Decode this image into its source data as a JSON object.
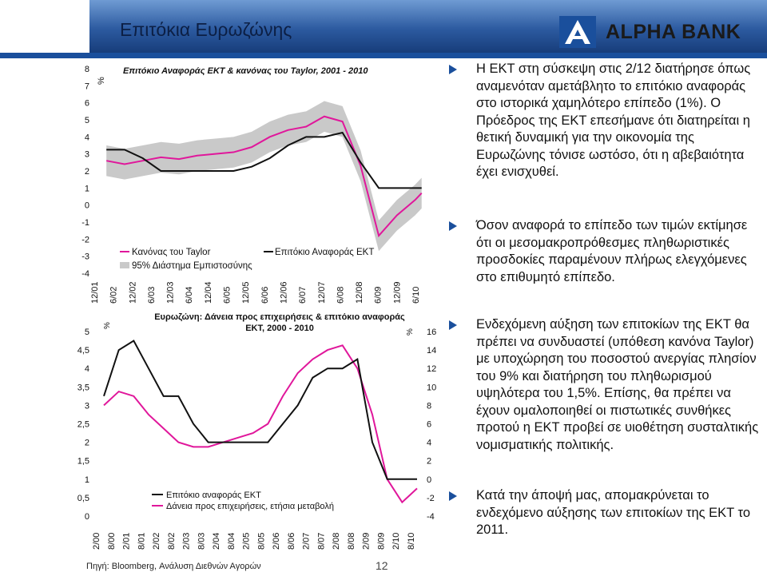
{
  "header": {
    "title": "Επιτόκια Ευρωζώνης",
    "logo_text": "ALPHA BANK"
  },
  "colors": {
    "accent": "#1a4f9c",
    "series_black": "#111111",
    "series_pink": "#e0179b",
    "band_gray": "#c9c9c9"
  },
  "charts": [
    {
      "title": "Επιτόκιο Αναφοράς ΕΚΤ & κανόνας του Taylor, 2001 - 2010",
      "unit_label": "%",
      "legend": [
        "Κανόνας του Taylor",
        "95% Διάστημα Εμπιστοσύνης",
        "Επιτόκιο Αναφοράς ΕΚΤ"
      ]
    },
    {
      "title_line1": "Ευρωζώνη: Δάνεια προς επιχειρήσεις & επιτόκιο αναφοράς",
      "title_line2": "ΕΚΤ, 2000 - 2010",
      "unit_left": "%",
      "unit_right": "%",
      "legend": [
        "Επιτόκιο αναφοράς ΕΚΤ",
        "Δάνεια προς επιχειρήσεις, ετήσια μεταβολή"
      ]
    }
  ],
  "chart_data": [
    {
      "type": "line",
      "title": "Επιτόκιο Αναφοράς ΕΚΤ & κανόνας του Taylor, 2001 - 2010",
      "xlabel": "",
      "ylabel": "%",
      "ylim": [
        -4,
        8
      ],
      "yticks": [
        8,
        7,
        6,
        5,
        4,
        3,
        2,
        1,
        0,
        -1,
        -2,
        -3,
        -4
      ],
      "xtick_labels": [
        "12/01",
        "6/02",
        "12/02",
        "6/03",
        "12/03",
        "6/04",
        "12/04",
        "6/05",
        "12/05",
        "6/06",
        "12/06",
        "6/07",
        "12/07",
        "6/08",
        "12/08",
        "6/09",
        "12/09",
        "6/10"
      ],
      "x": [
        2001.92,
        2002.42,
        2002.92,
        2003.42,
        2003.92,
        2004.42,
        2004.92,
        2005.42,
        2005.92,
        2006.42,
        2006.92,
        2007.42,
        2007.92,
        2008.42,
        2008.92,
        2009.42,
        2009.92,
        2010.42,
        2010.6
      ],
      "series": [
        {
          "name": "Επιτόκιο Αναφοράς ΕΚΤ",
          "values": [
            3.25,
            3.25,
            2.75,
            2.0,
            2.0,
            2.0,
            2.0,
            2.0,
            2.25,
            2.75,
            3.5,
            4.0,
            4.0,
            4.25,
            2.5,
            1.0,
            1.0,
            1.0,
            1.0
          ]
        },
        {
          "name": "Κανόνας του Taylor",
          "values": [
            2.6,
            2.4,
            2.6,
            2.8,
            2.7,
            2.9,
            3.0,
            3.1,
            3.4,
            4.0,
            4.4,
            4.6,
            5.2,
            4.9,
            2.3,
            -1.8,
            -0.6,
            0.3,
            0.7
          ]
        },
        {
          "name": "95% Διάστημα Εμπιστοσύνης (άνω)",
          "values": [
            3.5,
            3.3,
            3.5,
            3.7,
            3.6,
            3.8,
            3.9,
            4.0,
            4.3,
            4.9,
            5.3,
            5.5,
            6.1,
            5.8,
            3.2,
            -0.9,
            0.3,
            1.2,
            1.6
          ]
        },
        {
          "name": "95% Διάστημα Εμπιστοσύνης (κάτω)",
          "values": [
            1.7,
            1.5,
            1.7,
            1.9,
            1.8,
            2.0,
            2.1,
            2.2,
            2.5,
            3.1,
            3.5,
            3.7,
            4.3,
            4.0,
            1.4,
            -2.7,
            -1.5,
            -0.6,
            -0.2
          ]
        }
      ]
    },
    {
      "type": "line",
      "title": "Ευρωζώνη: Δάνεια προς επιχειρήσεις & επιτόκιο αναφοράς ΕΚΤ, 2000 - 2010",
      "xlabel": "",
      "ylabel": "%",
      "ylim": [
        0,
        5
      ],
      "y2lim": [
        -4,
        16
      ],
      "yticks": [
        "5",
        "4,5",
        "4",
        "3,5",
        "3",
        "2,5",
        "2",
        "1,5",
        "1",
        "0,5",
        "0"
      ],
      "y2ticks": [
        "16",
        "14",
        "12",
        "10",
        "8",
        "6",
        "4",
        "2",
        "0",
        "-2",
        "-4"
      ],
      "xtick_labels": [
        "2/00",
        "8/00",
        "2/01",
        "8/01",
        "2/02",
        "8/02",
        "2/03",
        "8/03",
        "2/04",
        "8/04",
        "2/05",
        "8/05",
        "2/06",
        "8/06",
        "2/07",
        "8/07",
        "2/08",
        "8/08",
        "2/09",
        "8/09",
        "2/10",
        "8/10"
      ],
      "x": [
        2000.1,
        2000.6,
        2001.1,
        2001.6,
        2002.1,
        2002.6,
        2003.1,
        2003.6,
        2004.1,
        2004.6,
        2005.1,
        2005.6,
        2006.1,
        2006.6,
        2007.1,
        2007.6,
        2008.1,
        2008.6,
        2009.1,
        2009.6,
        2010.1,
        2010.6
      ],
      "series": [
        {
          "name": "Επιτόκιο αναφοράς ΕΚΤ",
          "axis": "left",
          "values": [
            3.25,
            4.5,
            4.75,
            4.0,
            3.25,
            3.25,
            2.5,
            2.0,
            2.0,
            2.0,
            2.0,
            2.0,
            2.5,
            3.0,
            3.75,
            4.0,
            4.0,
            4.25,
            2.0,
            1.0,
            1.0,
            1.0
          ]
        },
        {
          "name": "Δάνεια προς επιχειρήσεις, ετήσια μεταβολή",
          "axis": "right",
          "values": [
            8.0,
            9.5,
            9.0,
            7.0,
            5.5,
            4.0,
            3.5,
            3.5,
            4.0,
            4.5,
            5.0,
            6.0,
            9.0,
            11.5,
            13.0,
            14.0,
            14.5,
            12.0,
            7.0,
            0.0,
            -2.5,
            -1.0
          ]
        }
      ]
    }
  ],
  "bullets": [
    "Η ΕΚΤ στη σύσκεψη στις 2/12 διατήρησε όπως αναμενόταν αμετάβλητο το επιτόκιο αναφοράς στο ιστορικά χαμηλότερο επίπεδο (1%). Ο Πρόεδρος της ΕΚΤ επεσήμανε ότι διατηρείται η θετική δυναμική για την οικονομία της Ευρωζώνης τόνισε ωστόσο, ότι η αβεβαιότητα έχει ενισχυθεί.",
    "Όσον αναφορά το επίπεδο των τιμών εκτίμησε ότι οι μεσομακροπρόθεσμες πληθωριστικές προσδοκίες παραμένουν πλήρως ελεγχόμενες στο επιθυμητό επίπεδο.",
    "Ενδεχόμενη αύξηση των επιτοκίων της ΕΚΤ θα πρέπει να συνδυαστεί (υπόθεση κανόνα Taylor) με υποχώρηση του ποσοστού ανεργίας πλησίον του 9% και διατήρηση του πληθωρισμού υψηλότερα του 1,5%. Επίσης, θα πρέπει να έχουν ομαλοποιηθεί οι πιστωτικές συνθήκες προτού η ΕΚΤ προβεί σε υιοθέτηση συσταλτικής νομισματικής πολιτικής.",
    "Κατά την άποψή μας, απομακρύνεται το ενδεχόμενο αύξησης των επιτοκίων της ΕΚΤ το 2011."
  ],
  "footer": {
    "source": "Πηγή: Bloomberg, Ανάλυση Διεθνών Αγορών",
    "page_number": "12"
  }
}
